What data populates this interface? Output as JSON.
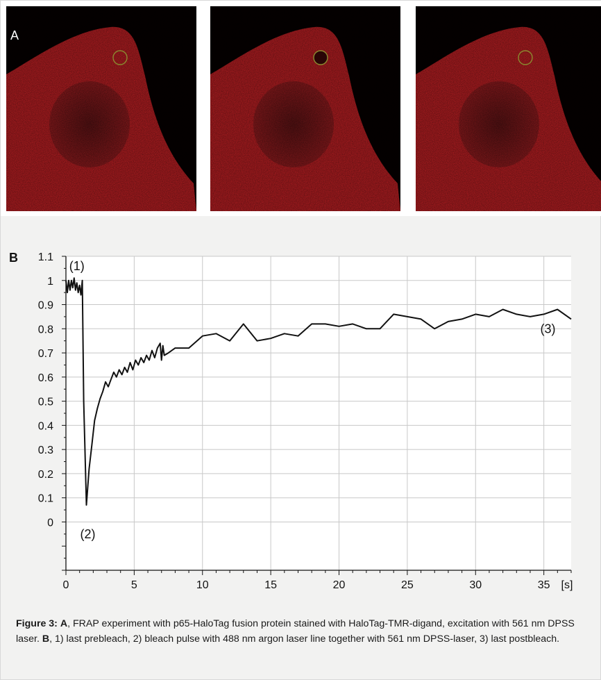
{
  "panel_a": {
    "label": "A",
    "images": [
      {
        "description": "prebleach",
        "ring_color": "#8a8a30"
      },
      {
        "description": "bleach",
        "ring_color": "#8a8a30"
      },
      {
        "description": "postbleach",
        "ring_color": "#8a8a30"
      }
    ],
    "cell_color": "#b51e22",
    "background_color": "#050000"
  },
  "panel_b": {
    "label": "B"
  },
  "chart_data": {
    "type": "line",
    "xlim": [
      0,
      37
    ],
    "ylim": [
      -0.2,
      1.1
    ],
    "x_ticks": [
      "0",
      "5",
      "10",
      "15",
      "20",
      "25",
      "30",
      "35"
    ],
    "x_unit": "[s]",
    "y_ticks": [
      "1.1",
      "1",
      "0.9",
      "0.8",
      "0.7",
      "0.6",
      "0.5",
      "0.4",
      "0.3",
      "0.2",
      "0.1",
      "0"
    ],
    "grid": true,
    "line_color": "#111111",
    "annotations": [
      {
        "text": "(1)",
        "x": 0.8,
        "y": 1.06
      },
      {
        "text": "(2)",
        "x": 1.6,
        "y": -0.05
      },
      {
        "text": "(3)",
        "x": 35.3,
        "y": 0.8
      }
    ],
    "series": [
      {
        "x": [
          0,
          0.1,
          0.2,
          0.3,
          0.4,
          0.5,
          0.6,
          0.7,
          0.8,
          0.9,
          1.0,
          1.1,
          1.2,
          1.3,
          1.5,
          1.7,
          1.9,
          2.1,
          2.3,
          2.5,
          2.7,
          2.9,
          3.1,
          3.3,
          3.5,
          3.7,
          3.9,
          4.1,
          4.3,
          4.5,
          4.7,
          4.9,
          5.1,
          5.3,
          5.5,
          5.7,
          5.9,
          6.1,
          6.3,
          6.5,
          6.7,
          6.9,
          7.0,
          7.1,
          7.2,
          7.5,
          8,
          9,
          10,
          11,
          12,
          13,
          14,
          15,
          16,
          17,
          18,
          19,
          20,
          21,
          22,
          23,
          24,
          25,
          26,
          27,
          28,
          29,
          30,
          31,
          32,
          33,
          34,
          35,
          36,
          37
        ],
        "y": [
          1.0,
          0.95,
          1.0,
          0.96,
          1.0,
          0.97,
          1.01,
          0.96,
          0.99,
          0.95,
          0.98,
          0.94,
          1.0,
          0.5,
          0.07,
          0.22,
          0.32,
          0.42,
          0.47,
          0.51,
          0.54,
          0.58,
          0.56,
          0.59,
          0.62,
          0.6,
          0.63,
          0.61,
          0.64,
          0.62,
          0.66,
          0.63,
          0.67,
          0.65,
          0.68,
          0.66,
          0.69,
          0.67,
          0.71,
          0.68,
          0.72,
          0.74,
          0.67,
          0.73,
          0.69,
          0.7,
          0.72,
          0.72,
          0.77,
          0.78,
          0.75,
          0.82,
          0.75,
          0.76,
          0.78,
          0.77,
          0.82,
          0.82,
          0.81,
          0.82,
          0.8,
          0.8,
          0.86,
          0.85,
          0.84,
          0.8,
          0.83,
          0.84,
          0.86,
          0.85,
          0.88,
          0.86,
          0.85,
          0.86,
          0.88,
          0.84
        ]
      }
    ]
  },
  "caption": {
    "fig_label": "Figure 3:",
    "a_label": "A",
    "a_text": ", FRAP experiment with p65-HaloTag fusion protein stained with HaloTag-TMR-digand, excitation with 561 nm DPSS laser. ",
    "b_label": "B",
    "b_text": ", 1) last prebleach, 2) bleach pulse with 488 nm argon laser line together with 561 nm DPSS-laser, 3) last postbleach."
  }
}
